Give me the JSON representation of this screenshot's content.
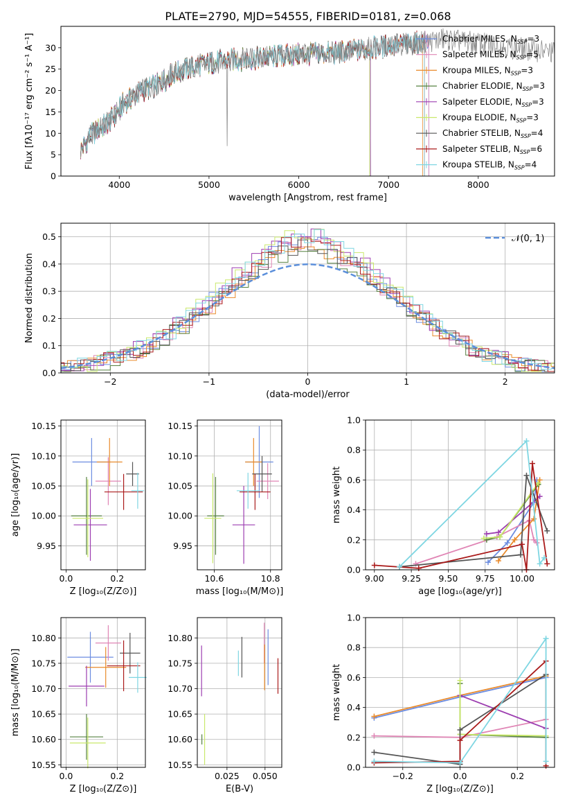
{
  "figure_title": "PLATE=2790, MJD=54555, FIBERID=0181, z=0.068",
  "series_colors": {
    "chabrier_miles": "#6b8ce0",
    "salpeter_miles": "#e085b5",
    "kroupa_miles": "#e98a2a",
    "chabrier_elodie": "#558040",
    "salpeter_elodie": "#9c3db0",
    "kroupa_elodie": "#c9e86a",
    "chabrier_stelib": "#555555",
    "salpeter_stelib": "#aa1a1a",
    "kroupa_stelib": "#7ed6e2",
    "normal": "#5b8fdb"
  },
  "chart_data": [
    {
      "id": "spectrum",
      "type": "line",
      "title": "PLATE=2790, MJD=54555, FIBERID=0181, z=0.068",
      "xlabel": "wavelength [Angstrom, rest frame]",
      "ylabel": "Flux [fλ10⁻¹⁷ erg cm⁻² s⁻¹ A⁻¹]",
      "xlim": [
        3350,
        8850
      ],
      "ylim": [
        0,
        35
      ],
      "xticks": [
        4000,
        5000,
        6000,
        7000,
        8000
      ],
      "yticks": [
        0,
        5,
        10,
        15,
        20,
        25,
        30
      ],
      "legend_position": "top-right",
      "continuum": {
        "x": [
          3570,
          3700,
          3850,
          3950,
          4050,
          4250,
          4400,
          4600,
          4900,
          5200,
          5500,
          5800,
          6100,
          6400,
          6700,
          7000,
          7300,
          7600
        ],
        "y": [
          6,
          10,
          12,
          14,
          17,
          20,
          21,
          24,
          26,
          27,
          27.5,
          28,
          28.5,
          28.8,
          29.5,
          30.5,
          31,
          32
        ]
      },
      "series": [
        {
          "key": "chabrier_miles",
          "name": "Chabrier MILES, N_SSP=3",
          "x_end": 7450
        },
        {
          "key": "salpeter_miles",
          "name": "Salpeter MILES, N_SSP=5",
          "x_end": 7450
        },
        {
          "key": "kroupa_miles",
          "name": "Kroupa MILES, N_SSP=3",
          "x_end": 7380
        },
        {
          "key": "chabrier_elodie",
          "name": "Chabrier ELODIE, N_SSP=3",
          "x_end": 6800
        },
        {
          "key": "salpeter_elodie",
          "name": "Salpeter ELODIE, N_SSP=3",
          "x_end": 6800
        },
        {
          "key": "kroupa_elodie",
          "name": "Kroupa ELODIE, N_SSP=3",
          "x_end": 6790
        },
        {
          "key": "chabrier_stelib",
          "name": "Chabrier STELIB, N_SSP=4",
          "x_end": 7400
        },
        {
          "key": "salpeter_stelib",
          "name": "Salpeter STELIB, N_SSP=6",
          "x_end": 7400
        },
        {
          "key": "kroupa_stelib",
          "name": "Kroupa STELIB, N_SSP=4",
          "x_end": 7400
        }
      ],
      "data_curve": {
        "name": "data",
        "color": "#808080",
        "x_start": 3570,
        "x_end": 8850
      }
    },
    {
      "id": "residuals",
      "type": "line",
      "xlabel": "(data-model)/error",
      "ylabel": "Normed distribution",
      "xlim": [
        -2.5,
        2.5
      ],
      "ylim": [
        0,
        0.55
      ],
      "xticks": [
        -2,
        -1,
        0,
        1,
        2
      ],
      "yticks": [
        0,
        0.1,
        0.2,
        0.3,
        0.4,
        0.5
      ],
      "grid": true,
      "legend_position": "top-right",
      "legend": "𝒩(0, 1)",
      "bin_width": 0.1,
      "series": [
        {
          "key": "chabrier_miles",
          "peak": 0.49,
          "phase": 0
        },
        {
          "key": "salpeter_miles",
          "peak": 0.48,
          "phase": 1
        },
        {
          "key": "kroupa_miles",
          "peak": 0.47,
          "phase": 2
        },
        {
          "key": "chabrier_elodie",
          "peak": 0.46,
          "phase": 3
        },
        {
          "key": "salpeter_elodie",
          "peak": 0.52,
          "phase": 4
        },
        {
          "key": "kroupa_elodie",
          "peak": 0.52,
          "phase": 5
        },
        {
          "key": "chabrier_stelib",
          "peak": 0.47,
          "phase": 6
        },
        {
          "key": "salpeter_stelib",
          "peak": 0.5,
          "phase": 7
        },
        {
          "key": "kroupa_stelib",
          "peak": 0.51,
          "phase": 8
        }
      ]
    },
    {
      "id": "age_vs_z",
      "type": "scatter",
      "xlabel": "Z [log₁₀(Z/Z⊙)]",
      "ylabel": "age  [log₁₀(age/yr)]",
      "xlim": [
        -0.02,
        0.31
      ],
      "ylim": [
        9.91,
        10.16
      ],
      "xticks": [
        0.0,
        0.2
      ],
      "yticks": [
        9.95,
        10.0,
        10.05,
        10.1,
        10.15
      ],
      "grid": true,
      "points": [
        {
          "key": "chabrier_miles",
          "x": 0.1,
          "y": 10.09,
          "xerr": 0.075,
          "yerr": 0.04
        },
        {
          "key": "salpeter_miles",
          "x": 0.165,
          "y": 10.058,
          "xerr": 0.05,
          "yerr": 0.04
        },
        {
          "key": "kroupa_miles",
          "x": 0.17,
          "y": 10.09,
          "xerr": 0.05,
          "yerr": 0.04
        },
        {
          "key": "chabrier_elodie",
          "x": 0.08,
          "y": 10.0,
          "xerr": 0.06,
          "yerr": 0.065
        },
        {
          "key": "salpeter_elodie",
          "x": 0.095,
          "y": 9.985,
          "xerr": 0.065,
          "yerr": 0.06
        },
        {
          "key": "kroupa_elodie",
          "x": 0.085,
          "y": 9.996,
          "xerr": 0.06,
          "yerr": 0.065
        },
        {
          "key": "chabrier_stelib",
          "x": 0.26,
          "y": 10.07,
          "xerr": 0.025,
          "yerr": 0.02
        },
        {
          "key": "salpeter_stelib",
          "x": 0.225,
          "y": 10.04,
          "xerr": 0.075,
          "yerr": 0.03
        },
        {
          "key": "kroupa_stelib",
          "x": 0.28,
          "y": 10.042,
          "xerr": 0.025,
          "yerr": 0.03
        }
      ]
    },
    {
      "id": "age_vs_mass",
      "type": "scatter",
      "xlabel": "mass [log₁₀(M/M⊙)]",
      "ylabel": "",
      "xlim": [
        10.54,
        10.84
      ],
      "ylim": [
        9.91,
        10.16
      ],
      "xticks": [
        10.6,
        10.8
      ],
      "yticks": [
        9.95,
        10.0,
        10.05,
        10.1,
        10.15
      ],
      "grid": true,
      "points": [
        {
          "key": "chabrier_miles",
          "x": 10.76,
          "y": 10.09,
          "xerr": 0.05,
          "yerr": 0.06
        },
        {
          "key": "salpeter_miles",
          "x": 10.79,
          "y": 10.058,
          "xerr": 0.04,
          "yerr": 0.03
        },
        {
          "key": "kroupa_miles",
          "x": 10.74,
          "y": 10.09,
          "xerr": 0.03,
          "yerr": 0.04
        },
        {
          "key": "chabrier_elodie",
          "x": 10.605,
          "y": 10.0,
          "xerr": 0.03,
          "yerr": 0.065
        },
        {
          "key": "salpeter_elodie",
          "x": 10.705,
          "y": 9.985,
          "xerr": 0.04,
          "yerr": 0.065
        },
        {
          "key": "kroupa_elodie",
          "x": 10.595,
          "y": 9.996,
          "xerr": 0.03,
          "yerr": 0.075
        },
        {
          "key": "chabrier_stelib",
          "x": 10.77,
          "y": 10.07,
          "xerr": 0.035,
          "yerr": 0.03
        },
        {
          "key": "salpeter_stelib",
          "x": 10.745,
          "y": 10.04,
          "xerr": 0.055,
          "yerr": 0.03
        },
        {
          "key": "kroupa_stelib",
          "x": 10.72,
          "y": 10.042,
          "xerr": 0.04,
          "yerr": 0.03
        }
      ]
    },
    {
      "id": "weight_vs_age",
      "type": "line",
      "xlabel": "age  [log₁₀(age/yr)]",
      "ylabel": "mass weight",
      "xlim": [
        8.94,
        10.22
      ],
      "ylim": [
        0,
        1
      ],
      "xticks": [
        9.0,
        9.25,
        9.5,
        9.75,
        10.0
      ],
      "yticks": [
        0.0,
        0.2,
        0.4,
        0.6,
        0.8,
        1.0
      ],
      "grid": true,
      "series": [
        {
          "key": "chabrier_miles",
          "x": [
            9.77,
            9.9,
            10.08,
            10.1
          ],
          "y": [
            0.05,
            0.18,
            0.45,
            0.6
          ]
        },
        {
          "key": "salpeter_miles",
          "x": [
            9.28,
            9.83,
            10.05,
            10.08,
            10.1
          ],
          "y": [
            0.04,
            0.22,
            0.33,
            0.2,
            0.18
          ]
        },
        {
          "key": "kroupa_miles",
          "x": [
            9.84,
            9.95,
            10.08,
            10.12
          ],
          "y": [
            0.06,
            0.2,
            0.34,
            0.6
          ]
        },
        {
          "key": "chabrier_elodie",
          "x": [
            9.76,
            9.85,
            10.11
          ],
          "y": [
            0.2,
            0.22,
            0.57
          ]
        },
        {
          "key": "salpeter_elodie",
          "x": [
            9.76,
            9.84,
            10.12
          ],
          "y": [
            0.24,
            0.25,
            0.49
          ]
        },
        {
          "key": "kroupa_elodie",
          "x": [
            9.74,
            9.85,
            10.11
          ],
          "y": [
            0.21,
            0.22,
            0.58
          ]
        },
        {
          "key": "chabrier_stelib",
          "x": [
            9.17,
            9.99,
            10.03,
            10.17
          ],
          "y": [
            0.02,
            0.1,
            0.63,
            0.26
          ]
        },
        {
          "key": "salpeter_stelib",
          "x": [
            9.0,
            9.3,
            10.0,
            10.03,
            10.07,
            10.17
          ],
          "y": [
            0.03,
            0.01,
            0.17,
            0.0,
            0.71,
            0.04
          ]
        },
        {
          "key": "kroupa_stelib",
          "x": [
            9.17,
            10.03,
            10.12,
            10.15
          ],
          "y": [
            0.02,
            0.86,
            0.04,
            0.08
          ]
        }
      ]
    },
    {
      "id": "mass_vs_z",
      "type": "scatter",
      "xlabel": "Z [log₁₀(Z/Z⊙)]",
      "ylabel": "mass [log₁₀(M/M⊙)]",
      "xlim": [
        -0.02,
        0.31
      ],
      "ylim": [
        10.545,
        10.84
      ],
      "xticks": [
        0.0,
        0.2
      ],
      "yticks": [
        10.55,
        10.6,
        10.65,
        10.7,
        10.75,
        10.8
      ],
      "grid": true,
      "points": [
        {
          "key": "chabrier_miles",
          "x": 0.095,
          "y": 10.762,
          "xerr": 0.09,
          "yerr": 0.05
        },
        {
          "key": "salpeter_miles",
          "x": 0.165,
          "y": 10.79,
          "xerr": 0.05,
          "yerr": 0.035
        },
        {
          "key": "kroupa_miles",
          "x": 0.155,
          "y": 10.742,
          "xerr": 0.08,
          "yerr": 0.04
        },
        {
          "key": "chabrier_elodie",
          "x": 0.08,
          "y": 10.605,
          "xerr": 0.065,
          "yerr": 0.045
        },
        {
          "key": "salpeter_elodie",
          "x": 0.08,
          "y": 10.705,
          "xerr": 0.07,
          "yerr": 0.04
        },
        {
          "key": "kroupa_elodie",
          "x": 0.085,
          "y": 10.593,
          "xerr": 0.07,
          "yerr": 0.05
        },
        {
          "key": "chabrier_stelib",
          "x": 0.25,
          "y": 10.77,
          "xerr": 0.04,
          "yerr": 0.04
        },
        {
          "key": "salpeter_stelib",
          "x": 0.225,
          "y": 10.745,
          "xerr": 0.065,
          "yerr": 0.05
        },
        {
          "key": "kroupa_stelib",
          "x": 0.28,
          "y": 10.722,
          "xerr": 0.035,
          "yerr": 0.03
        }
      ]
    },
    {
      "id": "mass_vs_ebv",
      "type": "scatter",
      "xlabel": "E(B-V)",
      "ylabel": "",
      "xlim": [
        0.0055,
        0.061
      ],
      "ylim": [
        10.545,
        10.84
      ],
      "xticks": [
        0.025,
        0.05
      ],
      "yticks": [
        10.55,
        10.6,
        10.65,
        10.7,
        10.75,
        10.8
      ],
      "grid": true,
      "points": [
        {
          "key": "chabrier_miles",
          "x": 0.052,
          "y": 10.762,
          "xerr": 0,
          "yerr": 0.055
        },
        {
          "key": "salpeter_miles",
          "x": 0.0495,
          "y": 10.79,
          "xerr": 0,
          "yerr": 0.04
        },
        {
          "key": "kroupa_miles",
          "x": 0.0497,
          "y": 10.742,
          "xerr": 0,
          "yerr": 0.045
        },
        {
          "key": "chabrier_elodie",
          "x": 0.0085,
          "y": 10.6,
          "xerr": 0,
          "yerr": 0.01
        },
        {
          "key": "salpeter_elodie",
          "x": 0.0083,
          "y": 10.735,
          "xerr": 0,
          "yerr": 0.05
        },
        {
          "key": "kroupa_elodie",
          "x": 0.0103,
          "y": 10.6,
          "xerr": 0,
          "yerr": 0.05
        },
        {
          "key": "chabrier_stelib",
          "x": 0.0348,
          "y": 10.762,
          "xerr": 0,
          "yerr": 0.04
        },
        {
          "key": "salpeter_stelib",
          "x": 0.0585,
          "y": 10.725,
          "xerr": 0,
          "yerr": 0.035
        },
        {
          "key": "kroupa_stelib",
          "x": 0.0325,
          "y": 10.75,
          "xerr": 0,
          "yerr": 0.025
        }
      ]
    },
    {
      "id": "weight_vs_z",
      "type": "line",
      "xlabel": "Z [log₁₀(Z/Z⊙)]",
      "ylabel": "mass weight",
      "xlim": [
        -0.33,
        0.33
      ],
      "ylim": [
        0,
        1
      ],
      "xticks": [
        -0.2,
        0.0,
        0.2
      ],
      "yticks": [
        0.0,
        0.2,
        0.4,
        0.6,
        0.8,
        1.0
      ],
      "grid": true,
      "series": [
        {
          "key": "chabrier_miles",
          "x": [
            -0.3,
            0.0,
            0.3
          ],
          "y": [
            0.33,
            0.47,
            0.6
          ]
        },
        {
          "key": "salpeter_miles",
          "x": [
            -0.3,
            0.0,
            0.3
          ],
          "y": [
            0.21,
            0.2,
            0.32
          ]
        },
        {
          "key": "kroupa_miles",
          "x": [
            -0.3,
            0.0,
            0.3
          ],
          "y": [
            0.34,
            0.48,
            0.61
          ]
        },
        {
          "key": "chabrier_elodie",
          "x": [
            0.0,
            0.0,
            0.3
          ],
          "y": [
            0.56,
            0.22,
            0.2
          ]
        },
        {
          "key": "salpeter_elodie",
          "x": [
            0.0,
            0.3
          ],
          "y": [
            0.48,
            0.26
          ]
        },
        {
          "key": "kroupa_elodie",
          "x": [
            0.0,
            0.0,
            0.3
          ],
          "y": [
            0.58,
            0.22,
            0.21
          ]
        },
        {
          "key": "chabrier_stelib",
          "x": [
            -0.3,
            0.0,
            0.0,
            0.3
          ],
          "y": [
            0.1,
            0.02,
            0.25,
            0.62
          ]
        },
        {
          "key": "salpeter_stelib",
          "x": [
            -0.3,
            0.0,
            0.0,
            0.3,
            0.3
          ],
          "y": [
            0.03,
            0.04,
            0.18,
            0.71,
            0.01
          ]
        },
        {
          "key": "kroupa_stelib",
          "x": [
            -0.3,
            0.0,
            0.3,
            0.3
          ],
          "y": [
            0.04,
            0.03,
            0.86,
            0.04
          ]
        }
      ]
    }
  ]
}
